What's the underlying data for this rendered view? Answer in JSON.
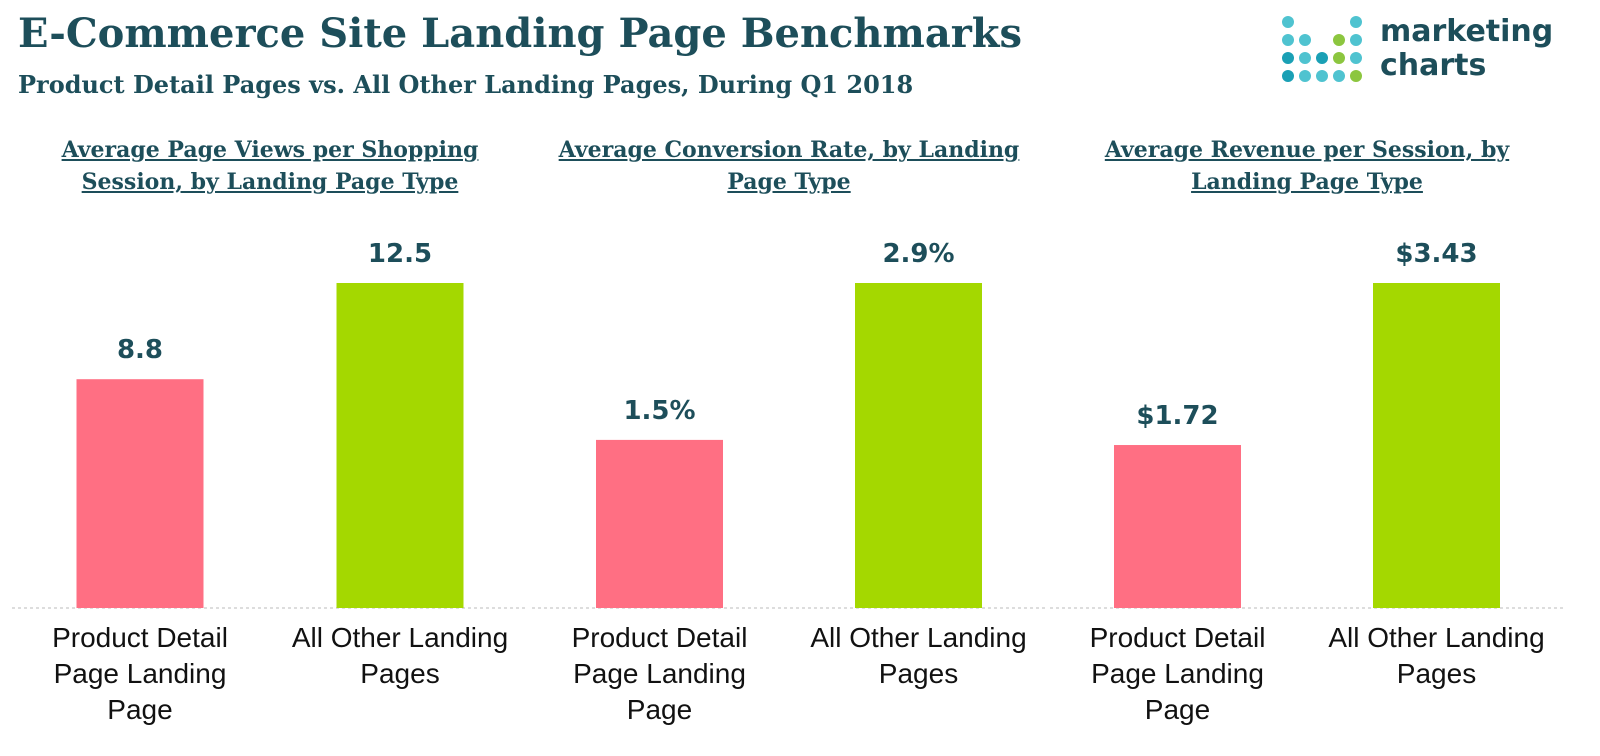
{
  "title": "E-Commerce Site Landing Page Benchmarks",
  "subtitle": "Product Detail Pages vs. All Other Landing Pages, During Q1 2018",
  "logo": [
    "marketing",
    "charts"
  ],
  "chart_data": [
    {
      "type": "bar",
      "title": "Average Page Views per Shopping Session, by Landing Page Type",
      "categories": [
        "Product Detail Page Landing Page",
        "All Other Landing Pages"
      ],
      "values": [
        8.8,
        12.5
      ],
      "colors": [
        "#ff6f83",
        "#a4d800"
      ]
    },
    {
      "type": "bar",
      "title": "Average Conversion Rate, by Landing Page Type",
      "categories": [
        "Product Detail Page Landing Page",
        "All Other Landing Pages"
      ],
      "values": [
        1.5,
        2.9
      ],
      "value_labels": [
        "1.5%",
        "2.9%"
      ],
      "colors": [
        "#ff6f83",
        "#a4d800"
      ]
    },
    {
      "type": "bar",
      "title": "Average Revenue per Session, by Landing Page Type",
      "categories": [
        "Product Detail Page Landing Page",
        "All Other Landing Pages"
      ],
      "values": [
        1.72,
        3.43
      ],
      "value_labels": [
        "$1.72",
        "$3.43"
      ],
      "colors": [
        "#ff6f83",
        "#a4d800"
      ]
    }
  ]
}
